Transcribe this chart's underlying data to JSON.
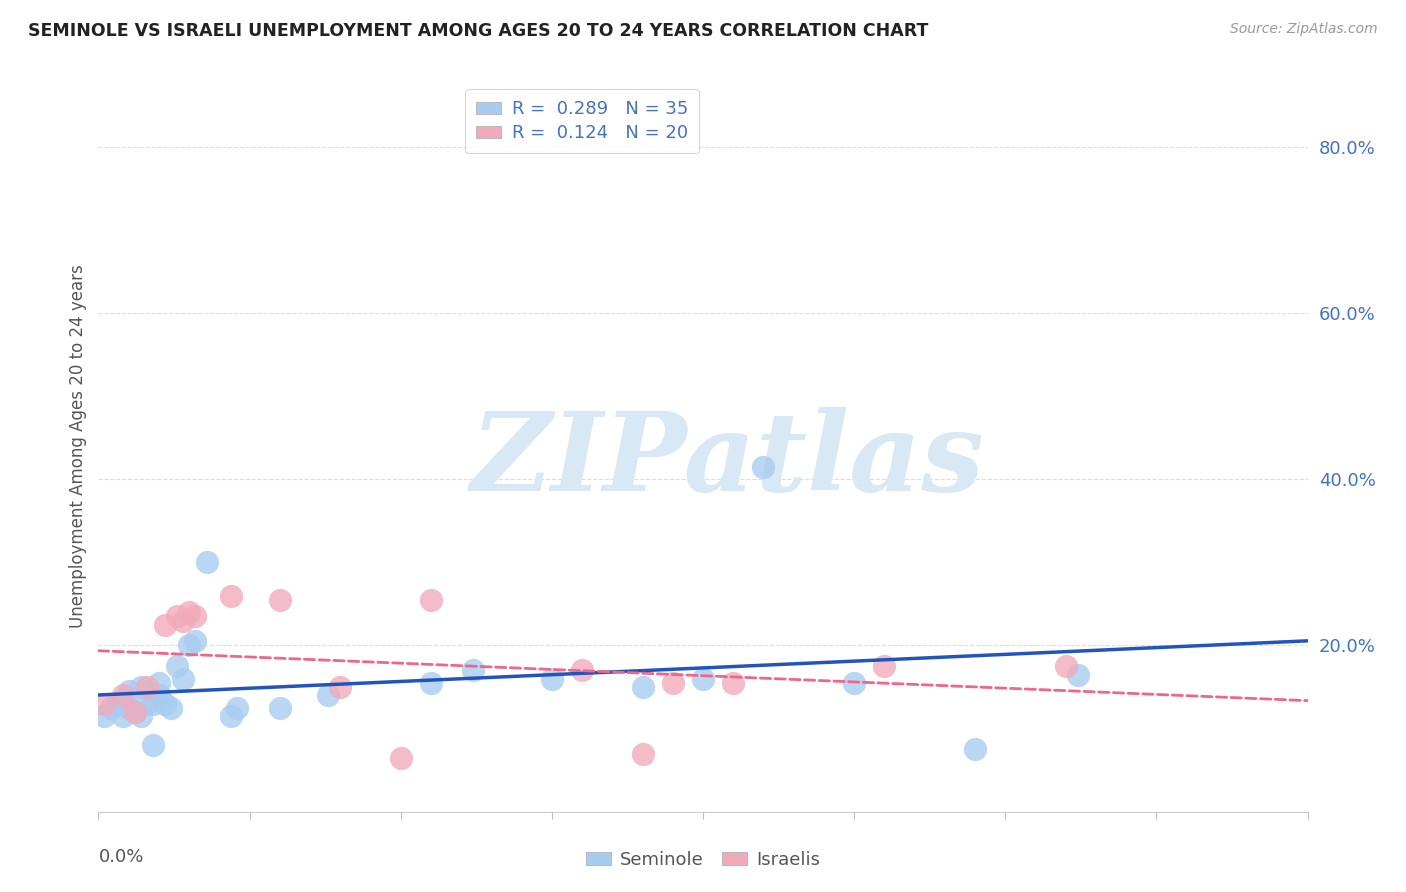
{
  "title": "SEMINOLE VS ISRAELI UNEMPLOYMENT AMONG AGES 20 TO 24 YEARS CORRELATION CHART",
  "source": "Source: ZipAtlas.com",
  "ylabel": "Unemployment Among Ages 20 to 24 years",
  "xlim": [
    0.0,
    0.2
  ],
  "ylim": [
    0.0,
    0.88
  ],
  "seminole_R": "0.289",
  "seminole_N": "35",
  "israelis_R": "0.124",
  "israelis_N": "20",
  "seminole_color": "#A8CCF0",
  "israelis_color": "#F2AABB",
  "seminole_line_color": "#2255BB",
  "israelis_line_color": "#EE6688",
  "watermark_color": "#D8E8F5",
  "ytick_vals": [
    0.2,
    0.4,
    0.6,
    0.8
  ],
  "ytick_labels": [
    "20.0%",
    "40.0%",
    "60.0%",
    "80.0%"
  ],
  "ytick_color": "#4472C4",
  "grid_color": "#DDDDDD",
  "title_color": "#222222",
  "source_color": "#999999",
  "ylabel_color": "#555555",
  "xlabel_color": "#555555",
  "sem_x": [
    0.001,
    0.002,
    0.003,
    0.004,
    0.004,
    0.005,
    0.005,
    0.006,
    0.007,
    0.007,
    0.008,
    0.009,
    0.009,
    0.01,
    0.01,
    0.011,
    0.012,
    0.013,
    0.014,
    0.015,
    0.016,
    0.018,
    0.022,
    0.023,
    0.03,
    0.038,
    0.055,
    0.062,
    0.075,
    0.09,
    0.1,
    0.11,
    0.125,
    0.145,
    0.162
  ],
  "sem_y": [
    0.115,
    0.125,
    0.13,
    0.115,
    0.135,
    0.125,
    0.145,
    0.12,
    0.15,
    0.115,
    0.13,
    0.08,
    0.13,
    0.155,
    0.14,
    0.13,
    0.125,
    0.175,
    0.16,
    0.2,
    0.205,
    0.3,
    0.115,
    0.125,
    0.125,
    0.14,
    0.155,
    0.17,
    0.16,
    0.15,
    0.16,
    0.415,
    0.155,
    0.075,
    0.165
  ],
  "isr_x": [
    0.001,
    0.004,
    0.006,
    0.008,
    0.011,
    0.013,
    0.014,
    0.015,
    0.016,
    0.022,
    0.03,
    0.04,
    0.05,
    0.055,
    0.08,
    0.09,
    0.095,
    0.105,
    0.13,
    0.16
  ],
  "isr_y": [
    0.13,
    0.14,
    0.12,
    0.15,
    0.225,
    0.235,
    0.23,
    0.24,
    0.235,
    0.26,
    0.255,
    0.15,
    0.065,
    0.255,
    0.17,
    0.07,
    0.155,
    0.155,
    0.175,
    0.175
  ]
}
